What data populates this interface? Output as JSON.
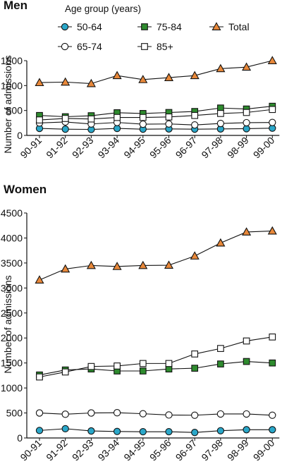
{
  "legend": {
    "title": "Age group (years)",
    "entries": [
      {
        "label": "50-64",
        "marker": "circle",
        "fill": "#2aa7c9"
      },
      {
        "label": "75-84",
        "marker": "square",
        "fill": "#2e8b2e"
      },
      {
        "label": "Total",
        "marker": "triangle",
        "fill": "#e8883a"
      },
      {
        "label": "65-74",
        "marker": "circle",
        "fill": "#ffffff"
      },
      {
        "label": "85+",
        "marker": "square",
        "fill": "#ffffff"
      }
    ]
  },
  "chart_data": [
    {
      "type": "line",
      "title": "Men",
      "xlabel": "",
      "ylabel": "Number of admissions",
      "ylim": [
        0,
        1500
      ],
      "yticks": [
        0,
        500,
        1000,
        1500
      ],
      "grid": false,
      "categories": [
        "90-91",
        "91-92",
        "92-93",
        "93-94",
        "94-95",
        "95-96",
        "96-97",
        "97-98",
        "98-99",
        "99-00"
      ],
      "series": [
        {
          "name": "50-64",
          "marker": "circle",
          "fill": "#2aa7c9",
          "values": [
            140,
            125,
            120,
            140,
            125,
            130,
            125,
            130,
            135,
            145
          ]
        },
        {
          "name": "65-74",
          "marker": "circle",
          "fill": "#ffffff",
          "values": [
            250,
            270,
            230,
            260,
            225,
            230,
            210,
            240,
            255,
            260
          ]
        },
        {
          "name": "75-84",
          "marker": "square",
          "fill": "#2e8b2e",
          "values": [
            400,
            375,
            395,
            455,
            440,
            460,
            480,
            550,
            530,
            585
          ]
        },
        {
          "name": "85+",
          "marker": "square",
          "fill": "#ffffff",
          "values": [
            310,
            340,
            330,
            360,
            360,
            370,
            400,
            440,
            460,
            520
          ]
        },
        {
          "name": "Total",
          "marker": "triangle",
          "fill": "#e8883a",
          "values": [
            1060,
            1070,
            1040,
            1200,
            1120,
            1160,
            1200,
            1340,
            1370,
            1500
          ]
        }
      ]
    },
    {
      "type": "line",
      "title": "Women",
      "xlabel": "",
      "ylabel": "Number of admissions",
      "ylim": [
        0,
        4500
      ],
      "yticks": [
        0,
        500,
        1000,
        1500,
        2000,
        2500,
        3000,
        3500,
        4000,
        4500
      ],
      "grid": false,
      "categories": [
        "90-91",
        "91-92",
        "92-93",
        "93-94",
        "94-95",
        "95-96",
        "96-97",
        "97-98",
        "98-99",
        "99-00"
      ],
      "series": [
        {
          "name": "50-64",
          "marker": "circle",
          "fill": "#2aa7c9",
          "values": [
            150,
            185,
            140,
            130,
            125,
            125,
            110,
            145,
            165,
            165
          ]
        },
        {
          "name": "65-74",
          "marker": "circle",
          "fill": "#ffffff",
          "values": [
            500,
            475,
            500,
            505,
            485,
            460,
            455,
            480,
            480,
            455
          ]
        },
        {
          "name": "75-84",
          "marker": "square",
          "fill": "#2e8b2e",
          "values": [
            1260,
            1360,
            1380,
            1340,
            1340,
            1380,
            1395,
            1480,
            1530,
            1500
          ]
        },
        {
          "name": "85+",
          "marker": "square",
          "fill": "#ffffff",
          "values": [
            1220,
            1320,
            1430,
            1440,
            1490,
            1490,
            1680,
            1790,
            1940,
            2020
          ]
        },
        {
          "name": "Total",
          "marker": "triangle",
          "fill": "#e8883a",
          "values": [
            3160,
            3380,
            3450,
            3430,
            3450,
            3455,
            3640,
            3900,
            4120,
            4140
          ]
        }
      ]
    }
  ]
}
